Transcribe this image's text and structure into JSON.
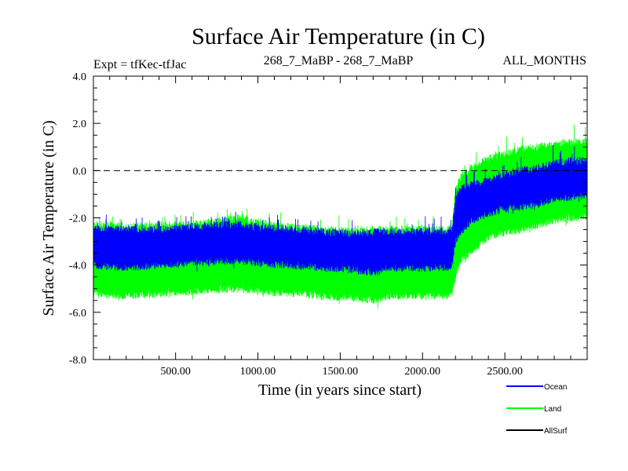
{
  "chart_data": {
    "type": "line",
    "title": "Surface Air Temperature (in C)",
    "subtitle_left": "Expt = tfKec-tfJac",
    "subtitle_center": "268_7_MaBP - 268_7_MaBP",
    "subtitle_right": "ALL_MONTHS",
    "xlabel": "Time (in years since start)",
    "ylabel": "Surface Air Temperature (in C)",
    "xlim": [
      1,
      3000
    ],
    "ylim": [
      -8.0,
      4.0
    ],
    "x_ticks": [
      500,
      1000,
      1500,
      2000,
      2500
    ],
    "x_tick_labels": [
      "500.00",
      "1000.00",
      "1500.00",
      "2000.00",
      "2500.00"
    ],
    "y_ticks": [
      4,
      2,
      0,
      -2,
      -4,
      -6,
      -8
    ],
    "y_tick_labels": [
      "4.0",
      "2.0",
      "0.0",
      "-2.0",
      "-4.0",
      "-6.0",
      "-8.0"
    ],
    "reference_line": {
      "y": 0.0,
      "style": "dashed"
    },
    "grid": false,
    "legend_placement": "bottom-right",
    "series": [
      {
        "name": "Ocean",
        "color": "#0000ff",
        "x": [
          1,
          200,
          400,
          600,
          800,
          900,
          1000,
          1200,
          1400,
          1600,
          1700,
          1800,
          2000,
          2150,
          2180,
          2200,
          2230,
          2300,
          2400,
          2500,
          2600,
          2700,
          2800,
          2900,
          3000
        ],
        "y_upper": [
          -2.5,
          -2.5,
          -2.5,
          -2.4,
          -2.3,
          -2.3,
          -2.4,
          -2.5,
          -2.6,
          -2.7,
          -2.6,
          -2.6,
          -2.6,
          -2.6,
          -2.5,
          -1.2,
          -0.8,
          -0.6,
          -0.4,
          -0.2,
          0.0,
          0.1,
          0.3,
          0.4,
          0.4
        ],
        "y_lower": [
          -4.0,
          -4.1,
          -4.0,
          -3.9,
          -3.8,
          -3.8,
          -3.9,
          -4.0,
          -4.1,
          -4.2,
          -4.3,
          -4.1,
          -4.1,
          -4.1,
          -4.0,
          -3.0,
          -2.6,
          -2.1,
          -1.8,
          -1.6,
          -1.5,
          -1.4,
          -1.2,
          -1.1,
          -1.0
        ]
      },
      {
        "name": "Land",
        "color": "#00ff00",
        "x": [
          1,
          200,
          400,
          600,
          800,
          900,
          1000,
          1200,
          1400,
          1600,
          1700,
          1800,
          2000,
          2150,
          2180,
          2200,
          2230,
          2300,
          2400,
          2500,
          2600,
          2700,
          2800,
          2900,
          3000
        ],
        "y_upper": [
          -2.3,
          -2.4,
          -2.3,
          -2.3,
          -2.1,
          -2.0,
          -2.2,
          -2.4,
          -2.5,
          -2.6,
          -2.5,
          -2.5,
          -2.5,
          -2.5,
          -2.4,
          -0.8,
          -0.3,
          0.1,
          0.5,
          0.7,
          0.9,
          1.0,
          1.1,
          1.2,
          1.2
        ],
        "y_lower": [
          -5.2,
          -5.3,
          -5.2,
          -5.1,
          -5.0,
          -5.0,
          -5.1,
          -5.2,
          -5.3,
          -5.4,
          -5.5,
          -5.3,
          -5.3,
          -5.3,
          -5.2,
          -4.5,
          -3.8,
          -3.4,
          -2.8,
          -2.6,
          -2.5,
          -2.3,
          -2.1,
          -2.0,
          -1.9
        ]
      },
      {
        "name": "AllSurf",
        "color": "#000000",
        "x": [],
        "y": []
      }
    ]
  }
}
